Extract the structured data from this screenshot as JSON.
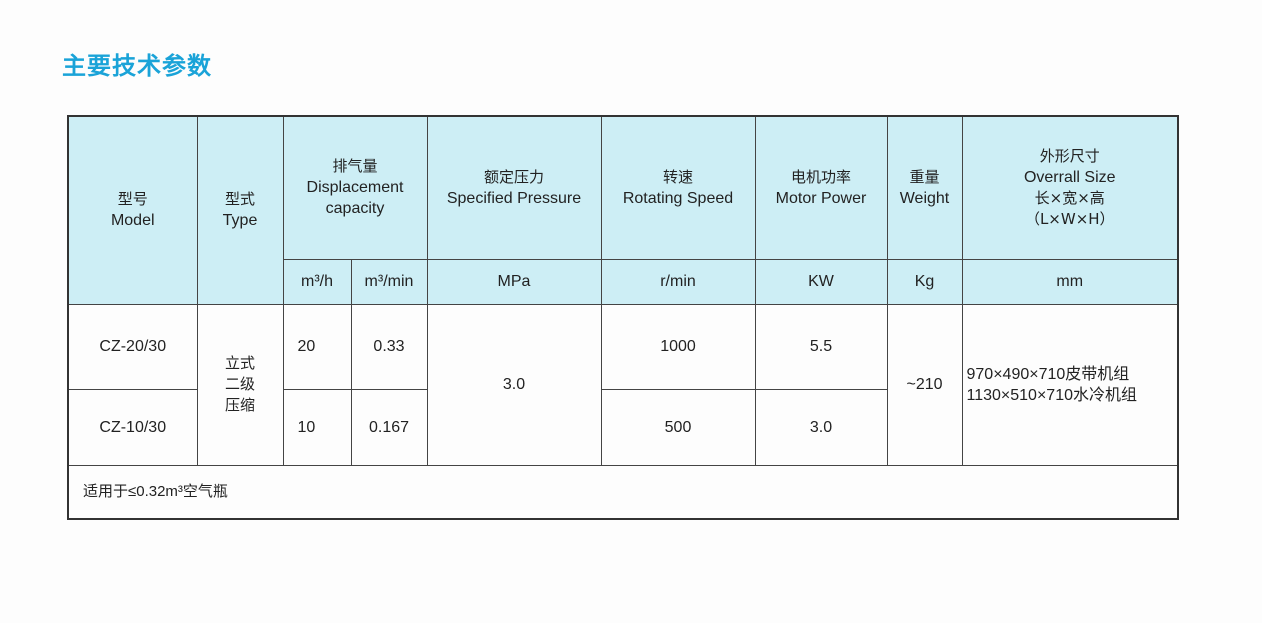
{
  "title": "主要技术参数",
  "header": {
    "model": {
      "zh": "型号",
      "en": "Model"
    },
    "type": {
      "zh": "型式",
      "en": "Type"
    },
    "displacement": {
      "zh": "排气量",
      "en1": "Displacement",
      "en2": "capacity",
      "unit1": "m³/h",
      "unit2": "m³/min"
    },
    "pressure": {
      "zh": "额定压力",
      "en": "Specified Pressure",
      "unit": "MPa"
    },
    "speed": {
      "zh": "转速",
      "en": "Rotating Speed",
      "unit": "r/min"
    },
    "motor": {
      "zh": "电机功率",
      "en": "Motor Power",
      "unit": "KW"
    },
    "weight": {
      "zh": "重量",
      "en": "Weight",
      "unit": "Kg"
    },
    "size": {
      "zh": "外形尺寸",
      "en": "Overrall Size",
      "zh2": "长×宽×高",
      "en2": "（L×W×H）",
      "unit": "mm"
    }
  },
  "rows": [
    {
      "model": "CZ-20/30",
      "m3h": "20",
      "m3min": "0.33",
      "speed": "1000",
      "motor": "5.5"
    },
    {
      "model": "CZ-10/30",
      "m3h": "10",
      "m3min": "0.167",
      "speed": "500",
      "motor": "3.0"
    }
  ],
  "shared": {
    "type_lines": [
      "立式",
      "二级",
      "压缩"
    ],
    "pressure": "3.0",
    "weight": "~210",
    "size_lines": [
      "970×490×710皮带机组",
      "1130×510×710水冷机组"
    ]
  },
  "footer": "适用于≤0.32m³空气瓶",
  "colors": {
    "title": "#1aa3d8",
    "header_bg": "#cdeef5"
  }
}
